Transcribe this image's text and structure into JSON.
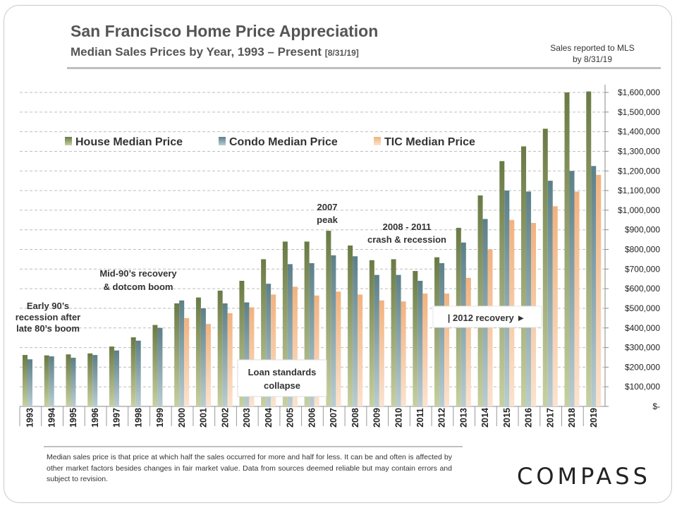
{
  "header": {
    "title": "San Francisco Home Price Appreciation",
    "subtitle": "Median Sales Prices by Year, 1993 – Present",
    "subtitle_date": "[8/31/19]",
    "note_line1": "Sales reported to MLS",
    "note_line2": "by 8/31/19"
  },
  "chart_data": {
    "type": "bar",
    "title": "San Francisco Home Price Appreciation",
    "categories": [
      "1993",
      "1994",
      "1995",
      "1996",
      "1997",
      "1998",
      "1999",
      "2000",
      "2001",
      "2002",
      "2003",
      "2004",
      "2005",
      "2006",
      "2007",
      "2008",
      "2009",
      "2010",
      "2011",
      "2012",
      "2013",
      "2014",
      "2015",
      "2016",
      "2017",
      "2018",
      "2019"
    ],
    "series": [
      {
        "name": "House Median Price",
        "color": "#7a8a55",
        "values": [
          262000,
          260000,
          265000,
          270000,
          305000,
          352000,
          415000,
          525000,
          555000,
          590000,
          640000,
          750000,
          840000,
          840000,
          895000,
          820000,
          745000,
          750000,
          690000,
          760000,
          910000,
          1075000,
          1250000,
          1325000,
          1415000,
          1600000,
          1605000
        ]
      },
      {
        "name": "Condo Median Price",
        "color": "#6f9199",
        "values": [
          240000,
          255000,
          248000,
          262000,
          285000,
          335000,
          400000,
          540000,
          500000,
          525000,
          530000,
          625000,
          725000,
          730000,
          770000,
          765000,
          670000,
          670000,
          640000,
          730000,
          835000,
          955000,
          1100000,
          1095000,
          1150000,
          1200000,
          1225000
        ]
      },
      {
        "name": "TIC Median Price",
        "color": "#f5c196",
        "values": [
          null,
          null,
          null,
          null,
          null,
          null,
          null,
          450000,
          420000,
          475000,
          505000,
          570000,
          610000,
          565000,
          585000,
          570000,
          540000,
          535000,
          575000,
          575000,
          655000,
          800000,
          950000,
          935000,
          1020000,
          1095000,
          1180000
        ]
      }
    ],
    "ylim": [
      0,
      1600000
    ],
    "yticks": [
      0,
      100000,
      200000,
      300000,
      400000,
      500000,
      600000,
      700000,
      800000,
      900000,
      1000000,
      1100000,
      1200000,
      1300000,
      1400000,
      1500000,
      1600000
    ],
    "ytick_labels": [
      "$-",
      "$100,000",
      "$200,000",
      "$300,000",
      "$400,000",
      "$500,000",
      "$600,000",
      "$700,000",
      "$800,000",
      "$900,000",
      "$1,000,000",
      "$1,100,000",
      "$1,200,000",
      "$1,300,000",
      "$1,400,000",
      "$1,500,000",
      "$1,600,000"
    ],
    "axis_side": "right",
    "grid": true,
    "legend_position": "top-left",
    "annotations": [
      {
        "id": "early90s",
        "lines": [
          "Early 90’s",
          "recession after",
          "late 80’s boom"
        ]
      },
      {
        "id": "mid90s",
        "lines": [
          "Mid-90’s recovery",
          "& dotcom boom"
        ]
      },
      {
        "id": "peak2007",
        "lines": [
          "2007",
          "peak"
        ]
      },
      {
        "id": "crash",
        "lines": [
          "2008 - 2011",
          "crash & recession"
        ]
      },
      {
        "id": "loan",
        "lines": [
          "Loan standards",
          "collapse"
        ]
      },
      {
        "id": "recovery2012",
        "lines": [
          "| 2012 recovery ►"
        ]
      }
    ]
  },
  "footer": {
    "disclaimer": "Median sales price is that price at which half the sales occurred for more and half for less. It can be and often is affected by other market factors besides changes in fair market value. Data from sources deemed reliable but may contain errors and subject to revision."
  },
  "brand": {
    "logo_text": "COMPASS"
  }
}
